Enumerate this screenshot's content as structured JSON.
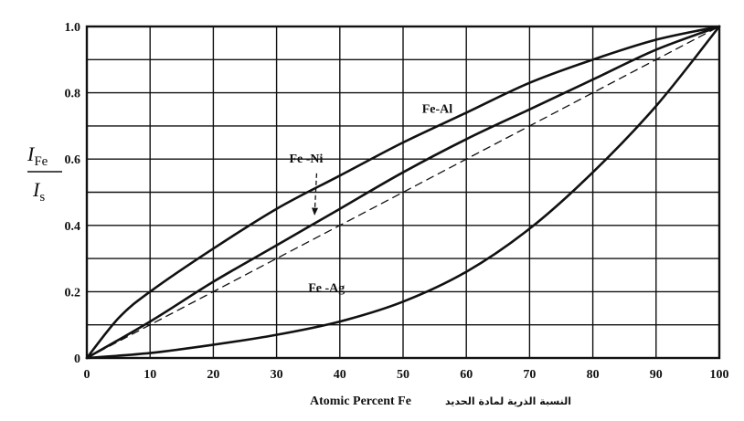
{
  "chart_data": {
    "type": "line",
    "xlabel": "Atomic Percent Fe",
    "xlabel_arabic": "النسبة الذرية لمادة الحديد",
    "ylabel": {
      "numerator_main": "I",
      "numerator_sub": "Fe",
      "denominator_main": "I",
      "denominator_sub": "s"
    },
    "xlim": [
      0,
      100
    ],
    "ylim": [
      0,
      1.0
    ],
    "xticks": [
      0,
      10,
      20,
      30,
      40,
      50,
      60,
      70,
      80,
      90,
      100
    ],
    "xtick_labels": [
      "0",
      "10",
      "20",
      "30",
      "40",
      "50",
      "60",
      "70",
      "80",
      "90",
      "100"
    ],
    "yticks": [
      0,
      0.2,
      0.4,
      0.6,
      0.8,
      1.0
    ],
    "ytick_labels": [
      "0",
      "0.2",
      "0.4",
      "0.6",
      "0.8",
      "1.0"
    ],
    "grid": true,
    "grid_y_step": 0.1,
    "series": [
      {
        "name": "Fe-Al",
        "style": "solid",
        "x": [
          0,
          5,
          10,
          20,
          30,
          40,
          50,
          60,
          70,
          80,
          90,
          100
        ],
        "y": [
          0,
          0.12,
          0.2,
          0.33,
          0.45,
          0.55,
          0.65,
          0.74,
          0.83,
          0.9,
          0.96,
          1.0
        ]
      },
      {
        "name": "Fe -Ni",
        "style": "solid",
        "x": [
          0,
          10,
          20,
          30,
          40,
          50,
          60,
          70,
          80,
          90,
          100
        ],
        "y": [
          0,
          0.11,
          0.23,
          0.34,
          0.45,
          0.56,
          0.66,
          0.75,
          0.84,
          0.93,
          1.0
        ]
      },
      {
        "name": "",
        "style": "dashed",
        "x": [
          0,
          100
        ],
        "y": [
          0,
          1.0
        ]
      },
      {
        "name": "Fe -Ag",
        "style": "solid",
        "x": [
          0,
          10,
          20,
          30,
          40,
          50,
          60,
          70,
          80,
          90,
          100
        ],
        "y": [
          0,
          0.015,
          0.04,
          0.07,
          0.11,
          0.17,
          0.26,
          0.39,
          0.56,
          0.76,
          1.0
        ]
      }
    ],
    "annotations": [
      {
        "text": "Fe-Al",
        "x": 53,
        "y": 0.74
      },
      {
        "text": "Fe -Ni",
        "x": 32,
        "y": 0.59,
        "arrow_to": {
          "x": 36,
          "y": 0.43
        }
      },
      {
        "text": "Fe -Ag",
        "x": 35,
        "y": 0.2
      }
    ]
  }
}
